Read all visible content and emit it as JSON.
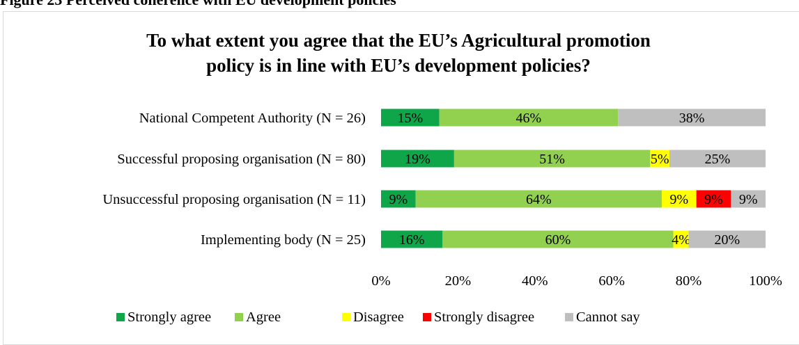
{
  "figure_caption": "Figure 23 Perceived coherence with EU development policies",
  "chart_data": {
    "type": "bar",
    "orientation": "horizontal",
    "stacked": true,
    "percent": true,
    "title_lines": [
      "To what extent you agree that the EU’s Agricultural promotion",
      "policy is in line with EU’s development policies?"
    ],
    "categories": [
      "National Competent Authority (N = 26)",
      "Successful proposing organisation (N = 80)",
      "Unsuccessful proposing organisation (N = 11)",
      "Implementing body (N = 25)"
    ],
    "series": [
      {
        "name": "Strongly agree",
        "color": "#0fa64a",
        "values": [
          15,
          19,
          9,
          16
        ],
        "labels": [
          "15%",
          "19%",
          "9%",
          "16%"
        ]
      },
      {
        "name": "Agree",
        "color": "#92d050",
        "values": [
          46,
          51,
          64,
          60
        ],
        "labels": [
          "46%",
          "51%",
          "64%",
          "60%"
        ]
      },
      {
        "name": "Disagree",
        "color": "#ffff00",
        "values": [
          0,
          5,
          9,
          4
        ],
        "labels": [
          "",
          "5%",
          "9%",
          "4%"
        ]
      },
      {
        "name": "Strongly disagree",
        "color": "#ff0000",
        "values": [
          0,
          0,
          9,
          0
        ],
        "labels": [
          "",
          "",
          "9%",
          ""
        ]
      },
      {
        "name": "Cannot say",
        "color": "#bfbfbf",
        "values": [
          38,
          25,
          9,
          20
        ],
        "labels": [
          "38%",
          "25%",
          "9%",
          "20%"
        ]
      }
    ],
    "x_ticks": [
      "0%",
      "20%",
      "40%",
      "60%",
      "80%",
      "100%"
    ],
    "xlim": [
      0,
      100
    ],
    "grid": false,
    "legend_position": "bottom"
  }
}
